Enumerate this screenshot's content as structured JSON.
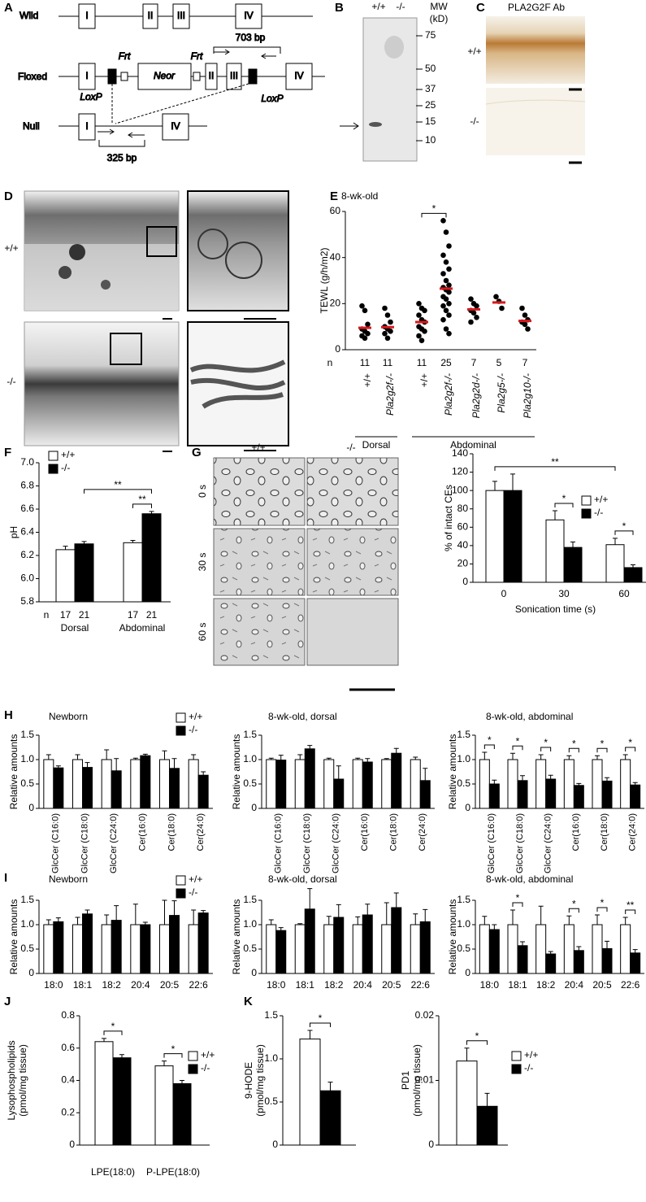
{
  "panel_letters": [
    "A",
    "B",
    "C",
    "D",
    "E",
    "F",
    "G",
    "H",
    "I",
    "J",
    "K"
  ],
  "gene_diagram": {
    "rows": [
      "Wild",
      "Floxed",
      "Null"
    ],
    "exons": [
      "I",
      "II",
      "III",
      "IV"
    ],
    "cassette": "Neor",
    "frt": "Frt",
    "loxp": "LoxP",
    "products": [
      "703 bp",
      "325 bp"
    ]
  },
  "western_blot": {
    "genotypes": [
      "+/+",
      "-/-"
    ],
    "mw": "MW",
    "mw_unit": "(kD)",
    "markers": [
      75,
      50,
      37,
      25,
      15,
      10
    ]
  },
  "ihc": {
    "antibody": "PLA2G2F Ab",
    "genotypes": [
      "+/+",
      "-/-"
    ]
  },
  "electron_microscopy": {
    "genotypes": [
      "+/+",
      "-/-"
    ]
  },
  "sonication_images": {
    "genotypes": [
      "+/+",
      "-/-"
    ],
    "times": [
      "0 s",
      "30 s",
      "60 s"
    ]
  },
  "chart_data": [
    {
      "type": "scatter",
      "title": "8-wk-old",
      "categories": [
        "+/+",
        "Pla2g2f-/-",
        "+/+",
        "Pla2g2f-/-",
        "Pla2g2d-/-",
        "Pla2g5-/-",
        "Pla2g10-/-"
      ],
      "points": [
        [
          19,
          17,
          11,
          9,
          8,
          7,
          6,
          5
        ],
        [
          18,
          15,
          12,
          10,
          9,
          8,
          7,
          5
        ],
        [
          20,
          18,
          17,
          15,
          13,
          12,
          10,
          9,
          8,
          6,
          4
        ],
        [
          56,
          51,
          45,
          41,
          38,
          35,
          33,
          30,
          28,
          27,
          26,
          25,
          23,
          22,
          20,
          19,
          17,
          15,
          13,
          9,
          7
        ],
        [
          22,
          20,
          19,
          17,
          16,
          14,
          12
        ],
        [
          23,
          21,
          18
        ],
        [
          18,
          15,
          13,
          12,
          11,
          9
        ]
      ],
      "means": [
        9.5,
        9.8,
        12,
        26.5,
        17.5,
        20.5,
        12.5
      ],
      "color": "#000000",
      "mean_color": "#d7191c",
      "n_label": "n",
      "n": [
        11,
        11,
        11,
        25,
        7,
        5,
        7
      ],
      "groups": [
        {
          "label": "Dorsal",
          "span": [
            0,
            1
          ]
        },
        {
          "label": "Abdominal",
          "span": [
            2,
            6
          ]
        }
      ],
      "brackets": [
        {
          "label": "*",
          "between": [
            2,
            3
          ]
        }
      ],
      "ylabel": "TEWL (g/h/m2)",
      "ylim": [
        0,
        60
      ],
      "yticks": [
        0,
        20,
        40,
        60
      ]
    },
    {
      "type": "bar",
      "categories": [
        "Dorsal",
        "Abdominal"
      ],
      "legend": "upper left",
      "n_label": "n",
      "series": [
        {
          "name": "+/+",
          "color": "#ffffff",
          "values": [
            6.25,
            6.31
          ],
          "errors": [
            0.03,
            0.02
          ],
          "n": [
            17,
            17
          ]
        },
        {
          "name": "-/-",
          "color": "#000000",
          "values": [
            6.3,
            6.56
          ],
          "errors": [
            0.02,
            0.02
          ],
          "n": [
            21,
            21
          ]
        }
      ],
      "brackets": [
        {
          "label": "**",
          "between": [
            [
              1,
              0
            ],
            [
              1,
              1
            ]
          ]
        },
        {
          "label": "**",
          "between": [
            [
              0,
              1
            ],
            [
              1,
              1
            ]
          ]
        }
      ],
      "ylabel": "pH",
      "ylim": [
        5.8,
        7.0
      ],
      "yticks": [
        5.8,
        {
          "value": 6,
          "label": "6.0"
        },
        6.2,
        6.4,
        6.6,
        6.8,
        {
          "value": 7,
          "label": "7.0"
        }
      ]
    },
    {
      "type": "bar",
      "categories": [
        "0",
        "30",
        "60"
      ],
      "legend": "center right",
      "xlabel": "Sonication time (s)",
      "series": [
        {
          "name": "+/+",
          "color": "#ffffff",
          "values": [
            100,
            68,
            41
          ],
          "errors": [
            10,
            10,
            7
          ]
        },
        {
          "name": "-/-",
          "color": "#000000",
          "values": [
            100,
            38,
            16
          ],
          "errors": [
            18,
            6,
            3
          ]
        }
      ],
      "brackets": [
        {
          "label": "**",
          "between": [
            [
              0,
              0
            ],
            [
              2,
              0
            ]
          ]
        },
        {
          "label": "*",
          "between": [
            [
              1,
              0
            ],
            [
              1,
              1
            ]
          ]
        },
        {
          "label": "*",
          "between": [
            [
              2,
              0
            ],
            [
              2,
              1
            ]
          ]
        }
      ],
      "ylabel": "% of intact CEs",
      "ylim": [
        0,
        140
      ],
      "yticks": [
        0,
        20,
        40,
        60,
        80,
        100,
        120,
        140
      ]
    },
    {
      "type": "bar",
      "title": "Newborn",
      "legend": "upper right",
      "categories": [
        "GlcCer (C16:0)",
        "GlcCer (C18:0)",
        "GlcCer (C24:0)",
        "Cer(16:0)",
        "Cer(18:0)",
        "Cer(24:0)"
      ],
      "series": [
        {
          "name": "+/+",
          "color": "#ffffff",
          "values": [
            1,
            1,
            1,
            1,
            1,
            1
          ],
          "errors": [
            0.1,
            0.1,
            0.2,
            0.03,
            0.18,
            0.1
          ]
        },
        {
          "name": "-/-",
          "color": "#000000",
          "values": [
            0.83,
            0.84,
            0.77,
            1.08,
            0.82,
            0.68
          ],
          "errors": [
            0.04,
            0.1,
            0.25,
            0.03,
            0.2,
            0.07
          ]
        }
      ],
      "ylabel": "Relative amounts",
      "ylim": [
        0,
        1.5
      ],
      "yticks": [
        0,
        0.5,
        {
          "value": 1,
          "label": "1.0"
        },
        1.5
      ]
    },
    {
      "type": "bar",
      "title": "8-wk-old, dorsal",
      "categories": [
        "GlcCer (C16:0)",
        "GlcCer (C18:0)",
        "GlcCer (C24:0)",
        "Cer(16:0)",
        "Cer(18:0)",
        "Cer(24:0)"
      ],
      "series": [
        {
          "color": "#ffffff",
          "values": [
            1,
            1,
            1,
            1,
            1,
            1
          ],
          "errors": [
            0.03,
            0.1,
            0.03,
            0.03,
            0.02,
            0.05
          ]
        },
        {
          "color": "#000000",
          "values": [
            0.99,
            1.22,
            0.6,
            0.95,
            1.13,
            0.57
          ],
          "errors": [
            0.1,
            0.07,
            0.27,
            0.07,
            0.1,
            0.25
          ]
        }
      ],
      "ylabel": "Relative amounts",
      "ylim": [
        0,
        1.5
      ],
      "yticks": [
        0,
        0.5,
        {
          "value": 1,
          "label": "1.0"
        },
        1.5
      ]
    },
    {
      "type": "bar",
      "title": "8-wk-old, abdominal",
      "categories": [
        "GlcCer (C16:0)",
        "GlcCer (C18:0)",
        "GlcCer (C24:0)",
        "Cer(16:0)",
        "Cer(18:0)",
        "Cer(24:0)"
      ],
      "series": [
        {
          "color": "#ffffff",
          "values": [
            1,
            1,
            1,
            1,
            1,
            1
          ],
          "errors": [
            0.15,
            0.13,
            0.1,
            0.08,
            0.08,
            0.1
          ]
        },
        {
          "color": "#000000",
          "values": [
            0.5,
            0.57,
            0.6,
            0.47,
            0.56,
            0.48
          ],
          "errors": [
            0.08,
            0.1,
            0.08,
            0.04,
            0.07,
            0.05
          ]
        }
      ],
      "brackets": [
        {
          "label": "*",
          "between": [
            [
              0,
              0
            ],
            [
              0,
              1
            ]
          ]
        },
        {
          "label": "*",
          "between": [
            [
              1,
              0
            ],
            [
              1,
              1
            ]
          ]
        },
        {
          "label": "*",
          "between": [
            [
              2,
              0
            ],
            [
              2,
              1
            ]
          ]
        },
        {
          "label": "*",
          "between": [
            [
              3,
              0
            ],
            [
              3,
              1
            ]
          ]
        },
        {
          "label": "*",
          "between": [
            [
              4,
              0
            ],
            [
              4,
              1
            ]
          ]
        },
        {
          "label": "*",
          "between": [
            [
              5,
              0
            ],
            [
              5,
              1
            ]
          ]
        }
      ],
      "ylabel": "Relative amounts",
      "ylim": [
        0,
        1.5
      ],
      "yticks": [
        0,
        0.5,
        {
          "value": 1,
          "label": "1.0"
        },
        1.5
      ]
    },
    {
      "type": "bar",
      "title": "Newborn",
      "legend": "upper right",
      "categories": [
        "18:0",
        "18:1",
        "18:2",
        "20:4",
        "20:5",
        "22:6"
      ],
      "series": [
        {
          "name": "+/+",
          "color": "#ffffff",
          "values": [
            1,
            1,
            1,
            1,
            1,
            1
          ],
          "errors": [
            0.1,
            0.15,
            0.2,
            0.42,
            0.5,
            0.3
          ]
        },
        {
          "name": "-/-",
          "color": "#000000",
          "values": [
            1.06,
            1.22,
            1.09,
            1.0,
            1.19,
            1.24
          ],
          "errors": [
            0.08,
            0.08,
            0.3,
            0.05,
            0.3,
            0.05
          ]
        }
      ],
      "ylabel": "Relative amounts",
      "ylim": [
        0,
        1.5
      ],
      "yticks": [
        0,
        0.5,
        {
          "value": 1,
          "label": "1.0"
        },
        1.5
      ]
    },
    {
      "type": "bar",
      "title": "8-wk-old, dorsal",
      "categories": [
        "18:0",
        "18:1",
        "18:2",
        "20:4",
        "20:5",
        "22:6"
      ],
      "series": [
        {
          "color": "#ffffff",
          "values": [
            1,
            1,
            1,
            1,
            1,
            1
          ],
          "errors": [
            0.1,
            0.02,
            0.17,
            0.16,
            0.45,
            0.22
          ]
        },
        {
          "color": "#000000",
          "values": [
            0.88,
            1.32,
            1.15,
            1.2,
            1.35,
            1.06
          ],
          "errors": [
            0.06,
            0.42,
            0.26,
            0.22,
            0.3,
            0.25
          ]
        }
      ],
      "ylabel": "Relative amounts",
      "ylim": [
        0,
        1.5
      ],
      "yticks": [
        0,
        0.5,
        {
          "value": 1,
          "label": "1.0"
        },
        1.5
      ]
    },
    {
      "type": "bar",
      "title": "8-wk-old, abdominal",
      "categories": [
        "18:0",
        "18:1",
        "18:2",
        "20:4",
        "20:5",
        "22:6"
      ],
      "series": [
        {
          "color": "#ffffff",
          "values": [
            1,
            1,
            1,
            1,
            1,
            1
          ],
          "errors": [
            0.17,
            0.3,
            0.38,
            0.18,
            0.2,
            0.15
          ]
        },
        {
          "color": "#000000",
          "values": [
            0.9,
            0.57,
            0.4,
            0.47,
            0.51,
            0.42
          ],
          "errors": [
            0.1,
            0.08,
            0.05,
            0.08,
            0.15,
            0.07
          ]
        }
      ],
      "brackets": [
        {
          "label": "*",
          "between": [
            [
              1,
              0
            ],
            [
              1,
              1
            ]
          ]
        },
        {
          "label": "*",
          "between": [
            [
              3,
              0
            ],
            [
              3,
              1
            ]
          ]
        },
        {
          "label": "*",
          "between": [
            [
              4,
              0
            ],
            [
              4,
              1
            ]
          ]
        },
        {
          "label": "**",
          "between": [
            [
              5,
              0
            ],
            [
              5,
              1
            ]
          ]
        }
      ],
      "ylabel": "Relative amounts",
      "ylim": [
        0,
        1.5
      ],
      "yticks": [
        0,
        0.5,
        {
          "value": 1,
          "label": "1.0"
        },
        1.5
      ]
    },
    {
      "type": "bar",
      "legend": "upper right",
      "categories": [
        "LPE(18:0)",
        "P-LPE(18:0)"
      ],
      "series": [
        {
          "name": "+/+",
          "color": "#ffffff",
          "values": [
            0.64,
            0.49
          ],
          "errors": [
            0.02,
            0.03
          ]
        },
        {
          "name": "-/-",
          "color": "#000000",
          "values": [
            0.54,
            0.38
          ],
          "errors": [
            0.02,
            0.02
          ]
        }
      ],
      "brackets": [
        {
          "label": "*",
          "between": [
            [
              0,
              0
            ],
            [
              0,
              1
            ]
          ]
        },
        {
          "label": "*",
          "between": [
            [
              1,
              0
            ],
            [
              1,
              1
            ]
          ]
        }
      ],
      "ylabel": [
        "Lysophospholipids",
        "(pmol/mg tissue)"
      ],
      "ylim": [
        0,
        0.8
      ],
      "yticks": [
        0,
        0.2,
        0.4,
        0.6,
        0.8
      ]
    },
    {
      "type": "bar",
      "categories": [
        null
      ],
      "series": [
        {
          "color": "#ffffff",
          "values": [
            1.23
          ],
          "errors": [
            0.1
          ]
        },
        {
          "color": "#000000",
          "values": [
            0.63
          ],
          "errors": [
            0.1
          ]
        }
      ],
      "brackets": [
        {
          "label": "*",
          "between": [
            [
              0,
              0
            ],
            [
              0,
              1
            ]
          ]
        }
      ],
      "ylabel": [
        "9-HODE",
        "(pmol/mg tissue)"
      ],
      "ylim": [
        0,
        1.5
      ],
      "yticks": [
        0,
        0.5,
        {
          "value": 1,
          "label": "1.0"
        },
        1.5
      ]
    },
    {
      "type": "bar",
      "legend": "upper right",
      "categories": [
        null
      ],
      "series": [
        {
          "name": "+/+",
          "color": "#ffffff",
          "values": [
            0.013
          ],
          "errors": [
            0.002
          ]
        },
        {
          "name": "-/-",
          "color": "#000000",
          "values": [
            0.006
          ],
          "errors": [
            0.002
          ]
        }
      ],
      "brackets": [
        {
          "label": "*",
          "between": [
            [
              0,
              0
            ],
            [
              0,
              1
            ]
          ]
        }
      ],
      "ylabel": [
        "PD1",
        "(pmol/mg tissue)"
      ],
      "ylim": [
        0,
        0.02
      ],
      "yticks": [
        0,
        0.01,
        0.02
      ]
    }
  ]
}
